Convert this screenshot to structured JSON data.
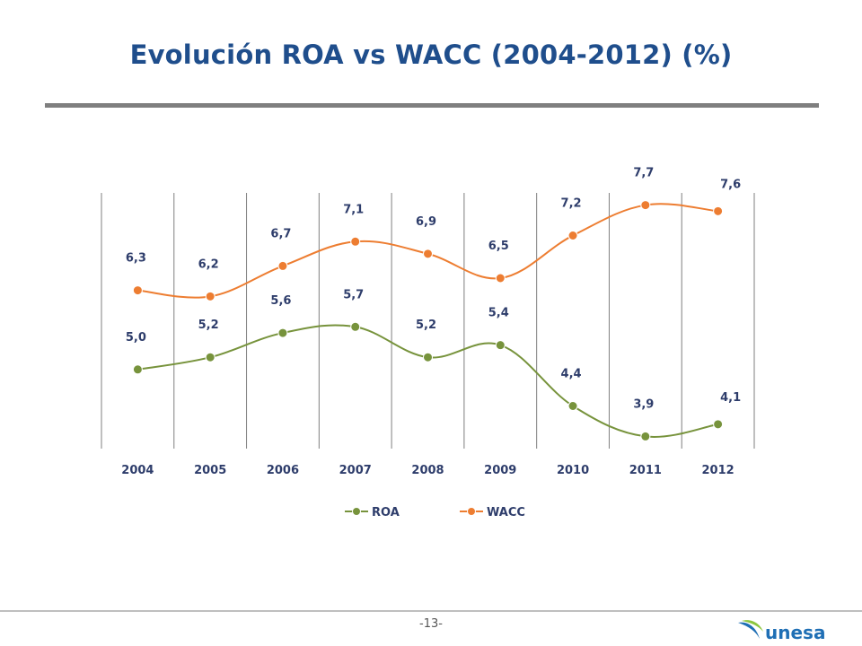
{
  "slide": {
    "title": "Evolución ROA vs WACC (2004-2012) (%)",
    "page_number": "-13-",
    "logo_text": "unesa"
  },
  "colors": {
    "title": "#1f4e8c",
    "roa": "#77933c",
    "wacc": "#ed7d31",
    "label_text": "#2e3d6b",
    "grid": "#7f7f7f"
  },
  "chart_data": {
    "type": "line",
    "categories": [
      "2004",
      "2005",
      "2006",
      "2007",
      "2008",
      "2009",
      "2010",
      "2011",
      "2012"
    ],
    "series": [
      {
        "name": "ROA",
        "values": [
          5.0,
          5.2,
          5.6,
          5.7,
          5.2,
          5.4,
          4.4,
          3.9,
          4.1
        ],
        "labels": [
          "5,0",
          "5,2",
          "5,6",
          "5,7",
          "5,2",
          "5,4",
          "4,4",
          "3,9",
          "4,1"
        ],
        "color": "#77933c"
      },
      {
        "name": "WACC",
        "values": [
          6.3,
          6.2,
          6.7,
          7.1,
          6.9,
          6.5,
          7.2,
          7.7,
          7.6
        ],
        "labels": [
          "6,3",
          "6,2",
          "6,7",
          "7,1",
          "6,9",
          "6,5",
          "7,2",
          "7,7",
          "7,6"
        ],
        "color": "#ed7d31"
      }
    ],
    "ylim": [
      3.7,
      7.9
    ],
    "smooth": true,
    "grid": "vertical",
    "legend": "bottom",
    "data_labels": true
  }
}
